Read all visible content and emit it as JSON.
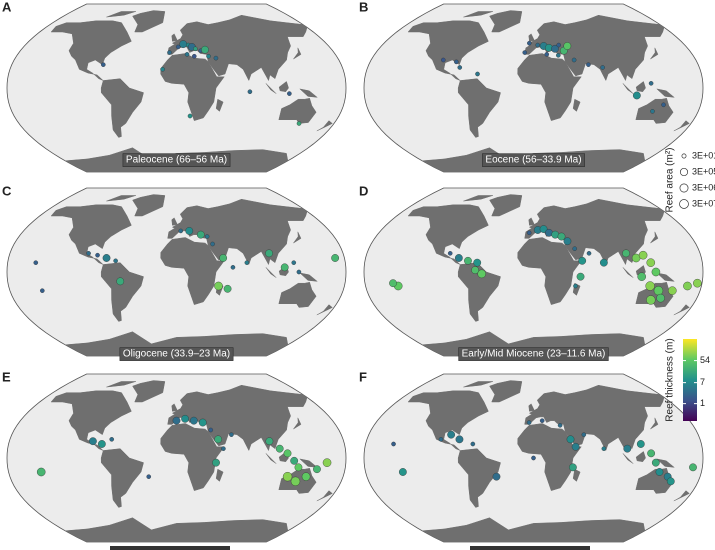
{
  "panels": [
    {
      "label": "A",
      "title": "Paleocene (66–56 Ma)",
      "points": [
        [
          -8,
          38,
          30,
          3
        ],
        [
          2,
          44,
          30,
          2
        ],
        [
          8,
          47,
          300000,
          5
        ],
        [
          14,
          46,
          30,
          8
        ],
        [
          18,
          44,
          300000,
          3
        ],
        [
          22,
          42,
          30,
          15
        ],
        [
          28,
          40,
          30,
          2
        ],
        [
          33,
          41,
          300000,
          20
        ],
        [
          12,
          36,
          30,
          4
        ],
        [
          20,
          34,
          30,
          1.5
        ],
        [
          36,
          34,
          30,
          6
        ],
        [
          44,
          32,
          30,
          3
        ],
        [
          -15,
          20,
          30,
          6
        ],
        [
          15,
          -30,
          30,
          10
        ],
        [
          78,
          -4,
          30,
          3
        ],
        [
          120,
          -6,
          30,
          2
        ],
        [
          140,
          -38,
          30,
          20
        ],
        [
          -80,
          25,
          30,
          2
        ]
      ]
    },
    {
      "label": "B",
      "title": "Eocene (56–33.9 Ma)",
      "points": [
        [
          -85,
          28,
          30,
          2
        ],
        [
          -80,
          22,
          30,
          3
        ],
        [
          -60,
          15,
          30,
          4
        ],
        [
          -100,
          30,
          30,
          1.5
        ],
        [
          -5,
          48,
          30,
          2
        ],
        [
          5,
          46,
          30,
          3
        ],
        [
          12,
          45,
          300000,
          5
        ],
        [
          18,
          43,
          300000,
          10
        ],
        [
          25,
          42,
          300000,
          3
        ],
        [
          30,
          46,
          30,
          2
        ],
        [
          35,
          40,
          300000,
          30
        ],
        [
          40,
          45,
          300000,
          50
        ],
        [
          15,
          36,
          30,
          2
        ],
        [
          28,
          35,
          30,
          4
        ],
        [
          -10,
          38,
          30,
          2
        ],
        [
          45,
          30,
          30,
          3
        ],
        [
          60,
          25,
          30,
          2
        ],
        [
          75,
          22,
          30,
          3
        ],
        [
          110,
          -8,
          300000,
          8
        ],
        [
          125,
          5,
          30,
          3
        ],
        [
          140,
          -18,
          30,
          2
        ],
        [
          130,
          -25,
          30,
          4
        ]
      ]
    },
    {
      "label": "C",
      "title": "Oligocene (33.9–23 Ma)",
      "points": [
        [
          -150,
          10,
          30,
          2
        ],
        [
          -145,
          -20,
          30,
          2
        ],
        [
          -95,
          20,
          30,
          3
        ],
        [
          -85,
          18,
          30,
          2
        ],
        [
          -75,
          15,
          300000,
          5
        ],
        [
          -65,
          12,
          30,
          4
        ],
        [
          -60,
          -10,
          300000,
          20
        ],
        [
          5,
          44,
          30,
          3
        ],
        [
          15,
          44,
          300000,
          8
        ],
        [
          28,
          40,
          300000,
          20
        ],
        [
          35,
          38,
          30,
          4
        ],
        [
          40,
          30,
          30,
          3
        ],
        [
          50,
          15,
          300000,
          30
        ],
        [
          45,
          -15,
          3000000,
          80
        ],
        [
          55,
          -18,
          300000,
          30
        ],
        [
          60,
          5,
          30,
          3
        ],
        [
          75,
          10,
          30,
          5
        ],
        [
          100,
          20,
          300000,
          20
        ],
        [
          115,
          5,
          300000,
          30
        ],
        [
          125,
          10,
          30,
          4
        ],
        [
          130,
          0,
          30,
          3
        ],
        [
          170,
          15,
          300000,
          30
        ]
      ]
    },
    {
      "label": "D",
      "title": "Early/Mid Miocene (23–11.6 Ma)",
      "points": [
        [
          -145,
          -15,
          3000000,
          60
        ],
        [
          -150,
          -12,
          300000,
          40
        ],
        [
          -90,
          20,
          30,
          2
        ],
        [
          -80,
          15,
          300000,
          5
        ],
        [
          -70,
          12,
          300000,
          30
        ],
        [
          -60,
          10,
          300000,
          10
        ],
        [
          -55,
          -2,
          3000000,
          60
        ],
        [
          -62,
          2,
          300000,
          40
        ],
        [
          -5,
          42,
          30,
          2
        ],
        [
          5,
          45,
          300000,
          5
        ],
        [
          12,
          46,
          300000,
          8
        ],
        [
          18,
          42,
          300000,
          3
        ],
        [
          25,
          40,
          300000,
          15
        ],
        [
          32,
          38,
          300000,
          20
        ],
        [
          38,
          33,
          300000,
          5
        ],
        [
          45,
          25,
          30,
          3
        ],
        [
          52,
          12,
          300000,
          10
        ],
        [
          50,
          -5,
          300000,
          20
        ],
        [
          45,
          -15,
          30,
          5
        ],
        [
          100,
          20,
          300000,
          30
        ],
        [
          110,
          15,
          3000000,
          80
        ],
        [
          118,
          18,
          3000000,
          100
        ],
        [
          125,
          10,
          3000000,
          100
        ],
        [
          130,
          0,
          3000000,
          60
        ],
        [
          115,
          -5,
          3000000,
          40
        ],
        [
          125,
          -15,
          30000000,
          100
        ],
        [
          135,
          -20,
          30000000,
          60
        ],
        [
          140,
          -28,
          3000000,
          40
        ],
        [
          130,
          -30,
          30000000,
          80
        ],
        [
          150,
          -20,
          3000000,
          100
        ],
        [
          165,
          -15,
          3000000,
          90
        ],
        [
          175,
          -12,
          3000000,
          100
        ],
        [
          60,
          20,
          30,
          3
        ],
        [
          75,
          10,
          300000,
          8
        ]
      ]
    },
    {
      "label": "E",
      "points": [
        [
          -145,
          -15,
          3000000,
          30
        ],
        [
          -90,
          18,
          300000,
          5
        ],
        [
          -80,
          15,
          300000,
          10
        ],
        [
          -70,
          20,
          30,
          3
        ],
        [
          0,
          40,
          300000,
          3
        ],
        [
          10,
          42,
          300000,
          8
        ],
        [
          20,
          40,
          300000,
          4
        ],
        [
          30,
          38,
          300000,
          10
        ],
        [
          38,
          30,
          30,
          2
        ],
        [
          45,
          20,
          300000,
          20
        ],
        [
          50,
          10,
          30,
          3
        ],
        [
          42,
          -5,
          300000,
          15
        ],
        [
          60,
          25,
          30,
          3
        ],
        [
          100,
          18,
          300000,
          20
        ],
        [
          110,
          10,
          300000,
          30
        ],
        [
          118,
          5,
          300000,
          50
        ],
        [
          125,
          -3,
          300000,
          20
        ],
        [
          130,
          -10,
          300000,
          60
        ],
        [
          120,
          -20,
          30000000,
          100
        ],
        [
          130,
          -25,
          30000000,
          80
        ],
        [
          140,
          -20,
          3000000,
          60
        ],
        [
          160,
          -5,
          3000000,
          100
        ],
        [
          150,
          -12,
          300000,
          30
        ],
        [
          -30,
          -20,
          30,
          2
        ]
      ]
    },
    {
      "label": "F",
      "points": [
        [
          -150,
          15,
          30,
          2
        ],
        [
          -140,
          -15,
          300000,
          10
        ],
        [
          -100,
          20,
          30,
          3
        ],
        [
          -90,
          25,
          300000,
          5
        ],
        [
          -80,
          20,
          300000,
          4
        ],
        [
          -65,
          15,
          30,
          3
        ],
        [
          -5,
          38,
          30,
          3
        ],
        [
          10,
          40,
          30,
          2
        ],
        [
          30,
          35,
          30,
          3
        ],
        [
          40,
          20,
          300000,
          8
        ],
        [
          45,
          12,
          300000,
          5
        ],
        [
          42,
          -10,
          300000,
          15
        ],
        [
          55,
          25,
          30,
          3
        ],
        [
          75,
          10,
          30,
          5
        ],
        [
          100,
          10,
          300000,
          5
        ],
        [
          115,
          15,
          300000,
          10
        ],
        [
          125,
          5,
          300000,
          30
        ],
        [
          130,
          -5,
          300000,
          20
        ],
        [
          135,
          -15,
          300000,
          8
        ],
        [
          145,
          -20,
          300000,
          5
        ],
        [
          150,
          -25,
          300000,
          10
        ],
        [
          170,
          -10,
          300000,
          30
        ],
        [
          0,
          0,
          30,
          2
        ],
        [
          -40,
          -20,
          300000,
          3
        ]
      ]
    }
  ],
  "size_legend": {
    "title": "Reef area (m²)",
    "entries": [
      {
        "value": 30,
        "label": "3E+01"
      },
      {
        "value": 300000,
        "label": "3E+05"
      },
      {
        "value": 3000000,
        "label": "3E+06"
      },
      {
        "value": 30000000,
        "label": "3E+07"
      }
    ]
  },
  "colorbar": {
    "title": "Reef thickness (m)",
    "scale": "log",
    "lim": [
      0.2,
      400
    ],
    "ticks": [
      54,
      7,
      1
    ]
  }
}
